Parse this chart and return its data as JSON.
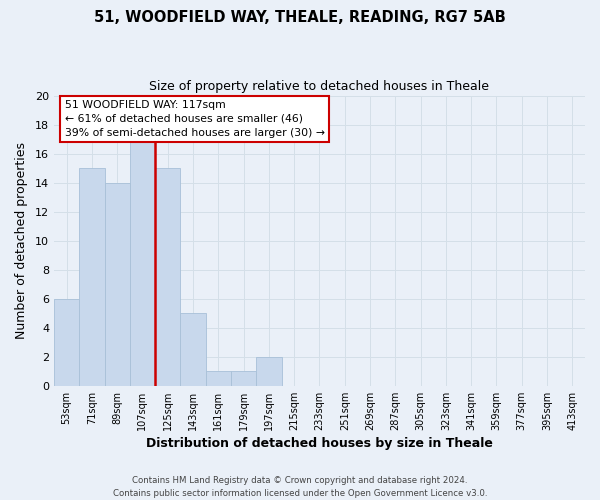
{
  "title": "51, WOODFIELD WAY, THEALE, READING, RG7 5AB",
  "subtitle": "Size of property relative to detached houses in Theale",
  "xlabel": "Distribution of detached houses by size in Theale",
  "ylabel": "Number of detached properties",
  "bar_labels": [
    "53sqm",
    "71sqm",
    "89sqm",
    "107sqm",
    "125sqm",
    "143sqm",
    "161sqm",
    "179sqm",
    "197sqm",
    "215sqm",
    "233sqm",
    "251sqm",
    "269sqm",
    "287sqm",
    "305sqm",
    "323sqm",
    "341sqm",
    "359sqm",
    "377sqm",
    "395sqm",
    "413sqm"
  ],
  "bar_heights": [
    6,
    15,
    14,
    17,
    15,
    5,
    1,
    1,
    2,
    0,
    0,
    0,
    0,
    0,
    0,
    0,
    0,
    0,
    0,
    0,
    0
  ],
  "bar_color": "#c8d8ec",
  "bar_edge_color": "#a8c0d8",
  "ylim": [
    0,
    20
  ],
  "yticks": [
    0,
    2,
    4,
    6,
    8,
    10,
    12,
    14,
    16,
    18,
    20
  ],
  "annotation_title": "51 WOODFIELD WAY: 117sqm",
  "annotation_line1": "← 61% of detached houses are smaller (46)",
  "annotation_line2": "39% of semi-detached houses are larger (30) →",
  "annotation_box_color": "#ffffff",
  "annotation_box_edge": "#cc0000",
  "property_line_color": "#cc0000",
  "grid_color": "#d4dfe8",
  "background_color": "#eaf0f8",
  "footer_line1": "Contains HM Land Registry data © Crown copyright and database right 2024.",
  "footer_line2": "Contains public sector information licensed under the Open Government Licence v3.0."
}
